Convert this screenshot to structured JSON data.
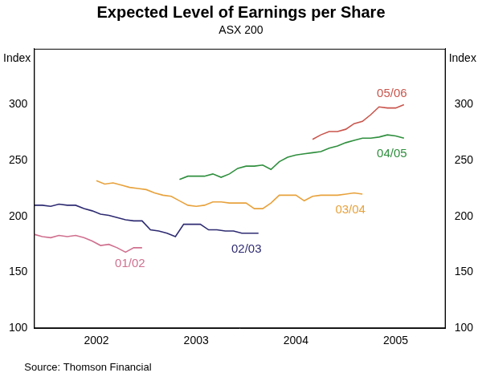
{
  "chart_data": {
    "type": "line",
    "title": "Expected Level of Earnings per Share",
    "subtitle": "ASX 200",
    "y_label": "Index",
    "y2_label": "Index",
    "source": "Source: Thomson Financial",
    "xlim": [
      2001.875,
      2006.0
    ],
    "xticks": [
      {
        "value": 2002.5,
        "label": "2002"
      },
      {
        "value": 2003.5,
        "label": "2003"
      },
      {
        "value": 2004.5,
        "label": "2004"
      },
      {
        "value": 2005.5,
        "label": "2005"
      }
    ],
    "ylim": [
      100,
      350
    ],
    "yticks": [
      100,
      150,
      200,
      250,
      300
    ],
    "y2lim": [
      100,
      350
    ],
    "y2ticks": [
      100,
      150,
      200,
      250,
      300
    ],
    "grid": false,
    "legend": false,
    "series": [
      {
        "name": "01/02",
        "color": "#d0708f",
        "x": [
          2001.875,
          2001.958,
          2002.042,
          2002.125,
          2002.208,
          2002.292,
          2002.375,
          2002.458,
          2002.542,
          2002.625,
          2002.708,
          2002.792,
          2002.875,
          2002.958
        ],
        "values": [
          184,
          182,
          181,
          183,
          182,
          183,
          181,
          178,
          174,
          175,
          172,
          168,
          172,
          172
        ]
      },
      {
        "name": "02/03",
        "color": "#2e2b72",
        "x": [
          2001.875,
          2001.958,
          2002.042,
          2002.125,
          2002.208,
          2002.292,
          2002.375,
          2002.458,
          2002.542,
          2002.625,
          2002.708,
          2002.792,
          2002.875,
          2002.958,
          2003.042,
          2003.125,
          2003.208,
          2003.292,
          2003.375,
          2003.458,
          2003.542,
          2003.625,
          2003.708,
          2003.792,
          2003.875,
          2003.958,
          2004.042,
          2004.125
        ],
        "values": [
          210,
          210,
          209,
          211,
          210,
          210,
          207,
          205,
          202,
          201,
          199,
          197,
          196,
          196,
          188,
          187,
          185,
          182,
          193,
          193,
          193,
          188,
          188,
          187,
          187,
          185,
          185,
          185
        ]
      },
      {
        "name": "03/04",
        "color": "#e8a23c",
        "x": [
          2002.5,
          2002.583,
          2002.667,
          2002.75,
          2002.833,
          2002.917,
          2003.0,
          2003.083,
          2003.167,
          2003.25,
          2003.333,
          2003.417,
          2003.5,
          2003.583,
          2003.667,
          2003.75,
          2003.833,
          2003.917,
          2004.0,
          2004.083,
          2004.167,
          2004.25,
          2004.333,
          2004.417,
          2004.5,
          2004.583,
          2004.667,
          2004.75,
          2004.833,
          2004.917,
          2005.0,
          2005.083,
          2005.167
        ],
        "values": [
          232,
          229,
          230,
          228,
          226,
          225,
          224,
          221,
          219,
          218,
          214,
          210,
          209,
          210,
          213,
          213,
          212,
          212,
          212,
          207,
          207,
          212,
          219,
          219,
          219,
          214,
          218,
          219,
          219,
          219,
          220,
          221,
          220
        ]
      },
      {
        "name": "04/05",
        "color": "#2f8f3e",
        "x": [
          2003.333,
          2003.417,
          2003.5,
          2003.583,
          2003.667,
          2003.75,
          2003.833,
          2003.917,
          2004.0,
          2004.083,
          2004.167,
          2004.25,
          2004.333,
          2004.417,
          2004.5,
          2004.583,
          2004.667,
          2004.75,
          2004.833,
          2004.917,
          2005.0,
          2005.083,
          2005.167,
          2005.25,
          2005.333,
          2005.417,
          2005.5,
          2005.583
        ],
        "values": [
          233,
          236,
          236,
          236,
          238,
          235,
          238,
          243,
          245,
          245,
          246,
          242,
          249,
          253,
          255,
          256,
          257,
          258,
          261,
          263,
          266,
          268,
          270,
          270,
          271,
          273,
          272,
          270
        ]
      },
      {
        "name": "05/06",
        "color": "#c9554c",
        "x": [
          2004.667,
          2004.75,
          2004.833,
          2004.917,
          2005.0,
          2005.083,
          2005.167,
          2005.25,
          2005.333,
          2005.417,
          2005.5,
          2005.583
        ],
        "values": [
          269,
          273,
          276,
          276,
          278,
          283,
          285,
          291,
          298,
          297,
          297,
          300
        ]
      }
    ]
  }
}
